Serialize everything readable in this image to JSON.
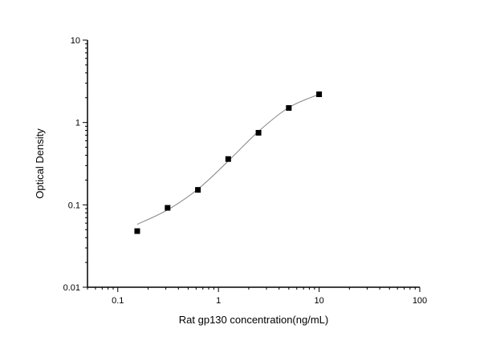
{
  "chart_data": {
    "type": "scatter",
    "title": "",
    "xlabel": "Rat gp130 concentration(ng/mL)",
    "ylabel": "Optical Density",
    "x_scale": "log",
    "y_scale": "log",
    "xlim": [
      0.05,
      100
    ],
    "ylim": [
      0.01,
      10
    ],
    "x_ticks": [
      0.1,
      1,
      10,
      100
    ],
    "x_tick_labels": [
      "0.1",
      "1",
      "10",
      "100"
    ],
    "y_ticks": [
      0.01,
      0.1,
      1,
      10
    ],
    "y_tick_labels": [
      "0.01",
      "0.1",
      "1",
      "10"
    ],
    "grid": false,
    "legend": "none",
    "series": [
      {
        "marker": "square",
        "color": "#000000",
        "x": [
          0.156,
          0.3125,
          0.625,
          1.25,
          2.5,
          5,
          10
        ],
        "y": [
          0.048,
          0.092,
          0.152,
          0.36,
          0.75,
          1.5,
          2.2
        ]
      },
      {
        "line": "fit",
        "color": "#808080",
        "x": [
          0.156,
          0.3125,
          0.625,
          1.25,
          2.5,
          5,
          10
        ],
        "y": [
          0.058,
          0.087,
          0.155,
          0.34,
          0.78,
          1.52,
          2.2
        ]
      }
    ]
  }
}
